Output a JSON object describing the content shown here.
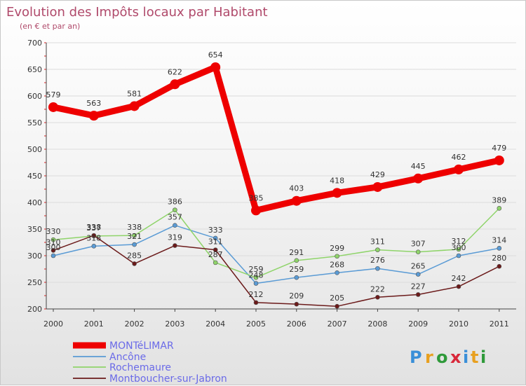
{
  "chart_data": {
    "type": "line",
    "title": "Evolution des Impôts locaux par Habitant",
    "subtitle": "(en € et par an)",
    "xlabel": "",
    "ylabel": "",
    "ylim": [
      200,
      700
    ],
    "yticks": [
      200,
      250,
      300,
      350,
      400,
      450,
      500,
      550,
      600,
      650,
      700
    ],
    "categories": [
      "2000",
      "2001",
      "2002",
      "2003",
      "2004",
      "2005",
      "2006",
      "2007",
      "2008",
      "2009",
      "2010",
      "2011"
    ],
    "series": [
      {
        "name": "MONTéLIMAR",
        "color": "#ee0000",
        "values": [
          579,
          563,
          581,
          622,
          654,
          385,
          403,
          418,
          429,
          445,
          462,
          479
        ]
      },
      {
        "name": "Ancône",
        "color": "#5a9bd5",
        "values": [
          300,
          318,
          321,
          357,
          333,
          248,
          259,
          268,
          276,
          265,
          300,
          314
        ]
      },
      {
        "name": "Rochemaure",
        "color": "#8fd46a",
        "values": [
          330,
          337,
          338,
          386,
          287,
          259,
          291,
          299,
          311,
          307,
          312,
          389
        ]
      },
      {
        "name": "Montboucher-sur-Jabron",
        "color": "#6b1a1a",
        "values": [
          310,
          338,
          285,
          319,
          311,
          212,
          209,
          205,
          222,
          227,
          242,
          280
        ]
      }
    ]
  },
  "logo": {
    "text": "Proxiti"
  }
}
